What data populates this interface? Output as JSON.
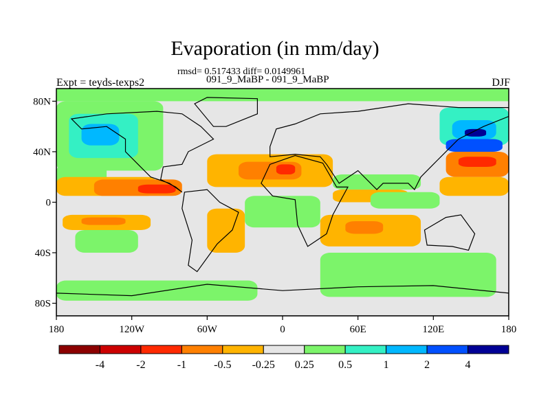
{
  "figure": {
    "title": "Evaporation (in mm/day)",
    "stats_line": "rmsd= 0.517433 diff= 0.0149961",
    "runs_line": "091_9_MaBP - 091_9_MaBP",
    "expt_label": "Expt = teyds-texps2",
    "season_label": "DJF"
  },
  "chart_data": {
    "type": "heatmap",
    "title": "Evaporation (in mm/day)",
    "subtitle": "rmsd= 0.517433 diff= 0.0149961",
    "left_label": "Expt = teyds-texps2",
    "right_label": "DJF",
    "center_label": "091_9_MaBP - 091_9_MaBP",
    "units": "mm/day",
    "xlim": [
      -180,
      180
    ],
    "ylim": [
      -90,
      90
    ],
    "x_ticks": [
      {
        "value": -180,
        "label": "180"
      },
      {
        "value": -120,
        "label": "120W"
      },
      {
        "value": -60,
        "label": "60W"
      },
      {
        "value": 0,
        "label": "0"
      },
      {
        "value": 60,
        "label": "60E"
      },
      {
        "value": 120,
        "label": "120E"
      },
      {
        "value": 180,
        "label": "180"
      }
    ],
    "y_ticks": [
      {
        "value": 80,
        "label": "80N"
      },
      {
        "value": 40,
        "label": "40N"
      },
      {
        "value": 0,
        "label": "0"
      },
      {
        "value": -40,
        "label": "40S"
      },
      {
        "value": -80,
        "label": "80S"
      }
    ],
    "colorbar": {
      "levels": [
        "-4",
        "-2",
        "-1",
        "-0.5",
        "-0.25",
        "0.25",
        "0.5",
        "1",
        "2",
        "4"
      ],
      "level_values": [
        -4,
        -2,
        -1,
        -0.5,
        -0.25,
        0.25,
        0.5,
        1,
        2,
        4
      ],
      "colors": [
        "#8c0000",
        "#cc0000",
        "#ff2a00",
        "#ff8000",
        "#ffb400",
        "#e6e6e6",
        "#7cf46a",
        "#34f0c4",
        "#00b8ff",
        "#0050ff",
        "#000096"
      ]
    },
    "regions": [
      {
        "bin": 5,
        "lon": [
          -180,
          180
        ],
        "lat": [
          -90,
          90
        ]
      },
      {
        "bin": 6,
        "lon": [
          -180,
          180
        ],
        "lat": [
          80,
          90
        ]
      },
      {
        "bin": 6,
        "lon": [
          -180,
          -95
        ],
        "lat": [
          25,
          80
        ]
      },
      {
        "bin": 7,
        "lon": [
          -170,
          -115
        ],
        "lat": [
          35,
          70
        ]
      },
      {
        "bin": 8,
        "lon": [
          -160,
          -130
        ],
        "lat": [
          45,
          62
        ]
      },
      {
        "bin": 6,
        "lon": [
          -180,
          -140
        ],
        "lat": [
          10,
          30
        ]
      },
      {
        "bin": 4,
        "lon": [
          -180,
          -100
        ],
        "lat": [
          5,
          20
        ]
      },
      {
        "bin": 3,
        "lon": [
          -150,
          -80
        ],
        "lat": [
          5,
          18
        ]
      },
      {
        "bin": 2,
        "lon": [
          -115,
          -85
        ],
        "lat": [
          7,
          14
        ]
      },
      {
        "bin": 4,
        "lon": [
          -175,
          -105
        ],
        "lat": [
          -22,
          -10
        ]
      },
      {
        "bin": 3,
        "lon": [
          -160,
          -125
        ],
        "lat": [
          -18,
          -12
        ]
      },
      {
        "bin": 6,
        "lon": [
          -165,
          -115
        ],
        "lat": [
          -40,
          -22
        ]
      },
      {
        "bin": 4,
        "lon": [
          -60,
          40
        ],
        "lat": [
          12,
          38
        ]
      },
      {
        "bin": 3,
        "lon": [
          -35,
          15
        ],
        "lat": [
          18,
          32
        ]
      },
      {
        "bin": 2,
        "lon": [
          -5,
          10
        ],
        "lat": [
          22,
          30
        ]
      },
      {
        "bin": 6,
        "lon": [
          40,
          110
        ],
        "lat": [
          10,
          22
        ]
      },
      {
        "bin": 4,
        "lon": [
          40,
          100
        ],
        "lat": [
          0,
          10
        ]
      },
      {
        "bin": 4,
        "lon": [
          -60,
          -30
        ],
        "lat": [
          -40,
          -5
        ]
      },
      {
        "bin": 6,
        "lon": [
          -30,
          30
        ],
        "lat": [
          -20,
          5
        ]
      },
      {
        "bin": 4,
        "lon": [
          30,
          110
        ],
        "lat": [
          -35,
          -10
        ]
      },
      {
        "bin": 3,
        "lon": [
          50,
          80
        ],
        "lat": [
          -25,
          -15
        ]
      },
      {
        "bin": 6,
        "lon": [
          30,
          170
        ],
        "lat": [
          -75,
          -40
        ]
      },
      {
        "bin": 6,
        "lon": [
          -180,
          -20
        ],
        "lat": [
          -78,
          -62
        ]
      },
      {
        "bin": 7,
        "lon": [
          125,
          180
        ],
        "lat": [
          45,
          75
        ]
      },
      {
        "bin": 8,
        "lon": [
          135,
          170
        ],
        "lat": [
          50,
          65
        ]
      },
      {
        "bin": 10,
        "lon": [
          145,
          162
        ],
        "lat": [
          52,
          58
        ]
      },
      {
        "bin": 9,
        "lon": [
          130,
          175
        ],
        "lat": [
          40,
          50
        ]
      },
      {
        "bin": 3,
        "lon": [
          130,
          180
        ],
        "lat": [
          20,
          40
        ]
      },
      {
        "bin": 2,
        "lon": [
          140,
          170
        ],
        "lat": [
          28,
          36
        ]
      },
      {
        "bin": 4,
        "lon": [
          125,
          180
        ],
        "lat": [
          5,
          20
        ]
      },
      {
        "bin": 6,
        "lon": [
          70,
          125
        ],
        "lat": [
          -5,
          8
        ]
      }
    ]
  }
}
